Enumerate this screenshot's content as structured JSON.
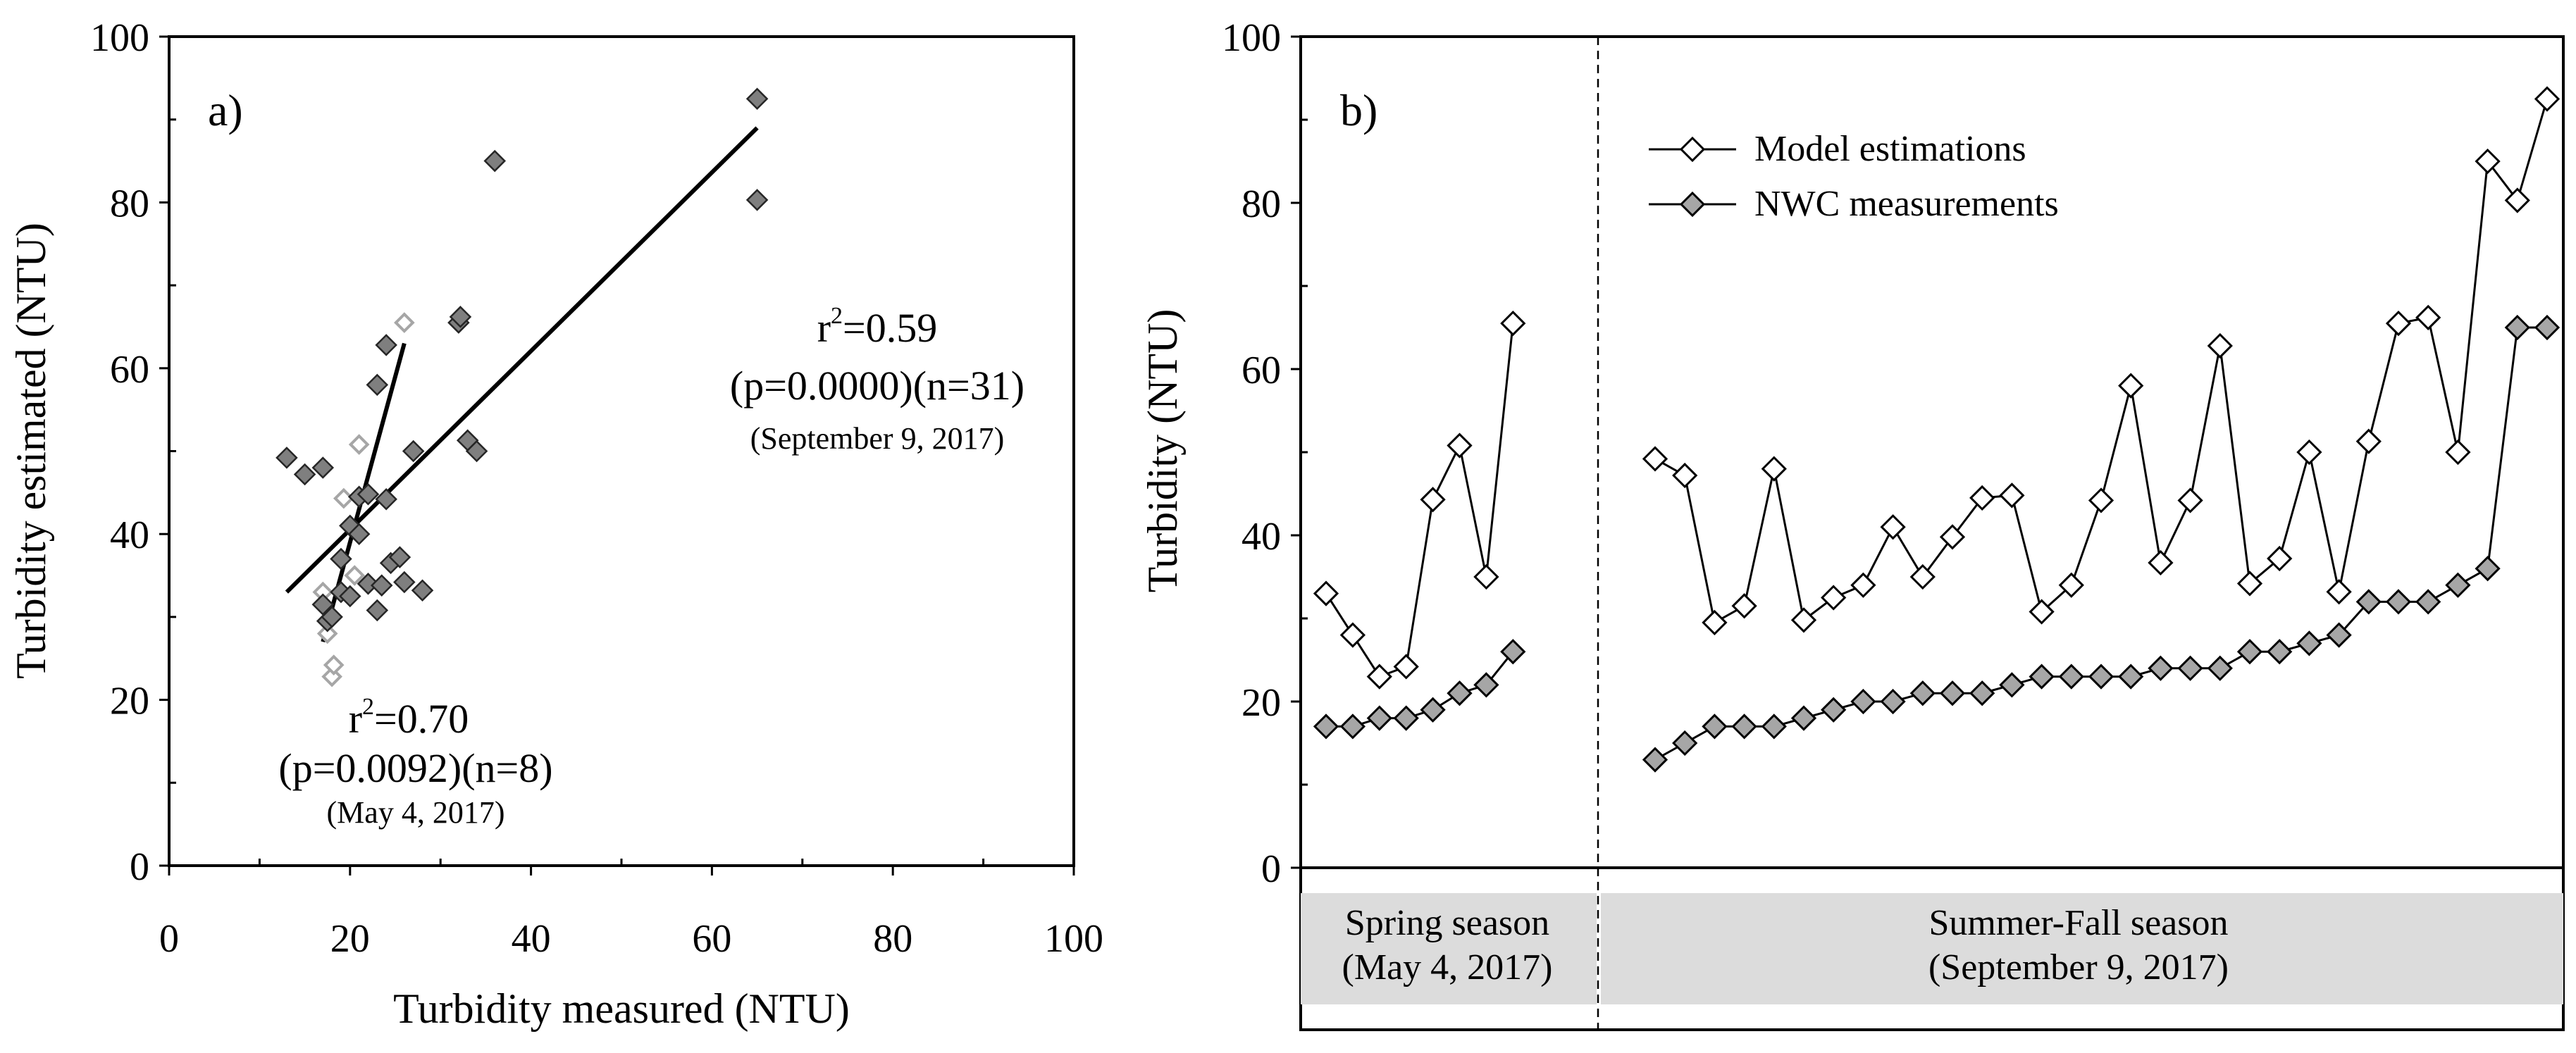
{
  "chart_data": [
    {
      "panel": "a)",
      "type": "scatter",
      "xlabel": "Turbidity measured (NTU)",
      "ylabel": "Turbidity estimated (NTU)",
      "xlim": [
        0,
        100
      ],
      "ylim": [
        0,
        100
      ],
      "x_ticks": [
        "0",
        "20",
        "40",
        "60",
        "80",
        "100"
      ],
      "y_ticks": [
        "0",
        "20",
        "40",
        "60",
        "80",
        "100"
      ],
      "series": [
        {
          "name": "May 4, 2017",
          "color": "#a6a6a6",
          "points": [
            [
              17,
              33
            ],
            [
              17.5,
              28
            ],
            [
              18,
              22.8
            ],
            [
              18.2,
              24.2
            ],
            [
              19.3,
              44.3
            ],
            [
              21,
              50.8
            ],
            [
              20.5,
              35
            ],
            [
              26,
              65.5
            ]
          ]
        },
        {
          "name": "September 9, 2017",
          "color": "#7f7f7f",
          "points": [
            [
              13,
              49.2
            ],
            [
              15,
              47.2
            ],
            [
              17,
              48
            ],
            [
              17,
              31.5
            ],
            [
              17.5,
              29.5
            ],
            [
              18,
              30
            ],
            [
              19,
              33
            ],
            [
              20,
              41
            ],
            [
              21,
              44.5
            ],
            [
              22,
              44.8
            ],
            [
              21,
              40
            ],
            [
              22,
              34
            ],
            [
              23,
              30.8
            ],
            [
              23,
              58
            ],
            [
              24,
              44.2
            ],
            [
              24,
              62.8
            ],
            [
              23.5,
              33.8
            ],
            [
              24.5,
              36.5
            ],
            [
              25.5,
              37.2
            ],
            [
              26,
              34.2
            ],
            [
              27,
              50
            ],
            [
              28,
              33.2
            ],
            [
              32,
              65.5
            ],
            [
              32.2,
              66.2
            ],
            [
              33,
              51.3
            ],
            [
              34,
              50
            ],
            [
              36,
              85
            ],
            [
              65,
              92.5
            ],
            [
              65,
              80.3
            ],
            [
              20,
              32.5
            ],
            [
              19,
              37
            ]
          ]
        }
      ],
      "fit_lines": [
        {
          "name": "September 9, 2017 fit",
          "x": [
            13,
            65
          ],
          "y": [
            33,
            89
          ]
        },
        {
          "name": "May 4, 2017 fit",
          "x": [
            17,
            26
          ],
          "y": [
            27,
            63
          ]
        }
      ],
      "annotations": {
        "sept": {
          "r2_base": "r",
          "r2_sup": "2",
          "r2_value": "=0.59",
          "stats": "(p=0.0000)(n=31)",
          "date": "(September 9, 2017)"
        },
        "may": {
          "r2_base": "r",
          "r2_sup": "2",
          "r2_value": "=0.70",
          "stats": "(p=0.0092)(n=8)",
          "date": "(May 4, 2017)"
        }
      }
    },
    {
      "panel": "b)",
      "type": "line",
      "ylabel": "Turbidity (NTU)",
      "ylim": [
        0,
        100
      ],
      "y_ticks": [
        "0",
        "20",
        "40",
        "60",
        "80",
        "100"
      ],
      "legend": {
        "position": "top-left",
        "entries": [
          {
            "label": "Model estimations",
            "color": "#ffffff"
          },
          {
            "label": "NWC measurements",
            "color": "#a6a6a6"
          }
        ]
      },
      "series": [
        {
          "name": "Model estimations",
          "color": "#ffffff",
          "segments": [
            [
              33,
              28,
              23,
              24.2,
              44.3,
              50.8,
              35,
              65.5
            ],
            [
              49.2,
              47.2,
              29.5,
              31.5,
              48,
              29.8,
              32.5,
              34,
              41,
              35,
              39.8,
              44.5,
              44.8,
              30.8,
              34,
              44.2,
              58,
              36.7,
              44.2,
              62.8,
              34.2,
              37.2,
              50,
              33.2,
              51.3,
              65.5,
              66.2,
              50,
              85,
              80.3,
              92.5
            ]
          ]
        },
        {
          "name": "NWC measurements",
          "color": "#a6a6a6",
          "segments": [
            [
              17,
              17,
              18,
              18,
              19,
              21,
              22,
              26
            ],
            [
              13,
              15,
              17,
              17,
              17,
              18,
              19,
              20,
              20,
              21,
              21,
              21,
              22,
              23,
              23,
              23,
              23,
              24,
              24,
              24,
              26,
              26,
              27,
              28,
              32,
              32,
              32,
              34,
              36,
              65,
              65
            ]
          ]
        }
      ],
      "seasons": [
        {
          "label_line1": "Spring season",
          "label_line2": "(May 4, 2017)"
        },
        {
          "label_line1": "Summer-Fall season",
          "label_line2": "(September 9, 2017)"
        }
      ]
    }
  ]
}
